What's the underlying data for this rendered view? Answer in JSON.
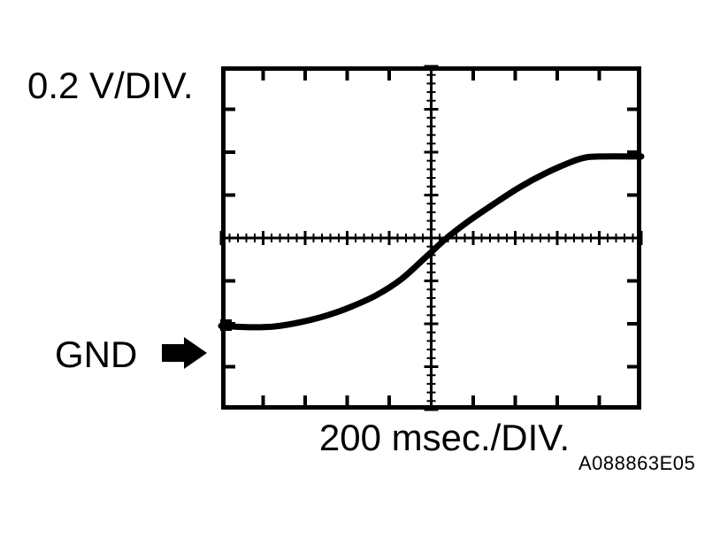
{
  "figure": {
    "y_scale_label": "0.2 V/DIV.",
    "gnd_label": "GND",
    "x_scale_label": "200 msec./DIV.",
    "figure_code": "A088863E05",
    "colors": {
      "ink": "#000000",
      "background": "#ffffff"
    }
  },
  "chart_data": {
    "type": "line",
    "title": "Oscilloscope voltage waveform (S-curve rise)",
    "xlabel": "200 msec./DIV.",
    "ylabel": "0.2 V/DIV.",
    "x_units": "divisions (200 msec each)",
    "y_units": "divisions (0.2 V each)",
    "xlim": [
      -5,
      5
    ],
    "ylim": [
      -4,
      4
    ],
    "divisions_x": 10,
    "divisions_y": 8,
    "minor_ticks_per_division": 5,
    "grid": "center cross-hair axes with minor ticks; major ticks on border",
    "legend_position": "none",
    "gnd_arrow_y_div": -2.7,
    "series": [
      {
        "name": "signal",
        "points": [
          [
            -5.0,
            -2.05
          ],
          [
            -4.3,
            -2.08
          ],
          [
            -3.7,
            -2.06
          ],
          [
            -3.1,
            -1.96
          ],
          [
            -2.5,
            -1.81
          ],
          [
            -1.9,
            -1.6
          ],
          [
            -1.3,
            -1.33
          ],
          [
            -0.7,
            -0.95
          ],
          [
            -0.1,
            -0.42
          ],
          [
            0.37,
            0.0
          ],
          [
            0.9,
            0.4
          ],
          [
            1.5,
            0.8
          ],
          [
            2.1,
            1.18
          ],
          [
            2.7,
            1.5
          ],
          [
            3.2,
            1.72
          ],
          [
            3.6,
            1.86
          ],
          [
            4.0,
            1.9
          ],
          [
            5.0,
            1.9
          ]
        ]
      }
    ]
  }
}
